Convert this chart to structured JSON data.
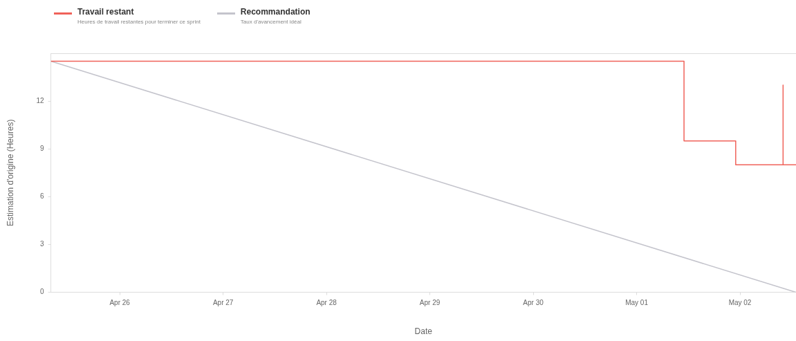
{
  "chart_data": {
    "type": "line",
    "xlabel": "Date",
    "ylabel": "Estimation d'origine (Heures)",
    "xlim": [
      "--04-25T08:00",
      "--05-02T13:00"
    ],
    "xticks": [
      {
        "value": "--04-26",
        "label": "Apr 26"
      },
      {
        "value": "--04-27",
        "label": "Apr 27"
      },
      {
        "value": "--04-28",
        "label": "Apr 28"
      },
      {
        "value": "--04-29",
        "label": "Apr 29"
      },
      {
        "value": "--04-30",
        "label": "Apr 30"
      },
      {
        "value": "--05-01",
        "label": "May 01"
      },
      {
        "value": "--05-02",
        "label": "May 02"
      }
    ],
    "ylim": [
      0,
      15
    ],
    "yticks": [
      0,
      3,
      6,
      9,
      12
    ],
    "legend": "top left",
    "annotations": [
      "Heures de travail restantes pour terminer ce sprint",
      "Taux d'avancement idéal"
    ],
    "series": [
      {
        "name": "Travail restant",
        "type": "step",
        "color": "#f0625a",
        "x": [
          "--04-25T08:00",
          "--05-01T11:00",
          "--05-01T23:00",
          "--05-02T10:00",
          "--05-02T10:00",
          "--05-02T13:00"
        ],
        "values": [
          14.5,
          9.5,
          8,
          13,
          8,
          8
        ]
      },
      {
        "name": "Recommandation",
        "color": "#c4c4cc",
        "x": [
          "--04-25T08:00",
          "--05-02T13:00"
        ],
        "values": [
          14.5,
          0
        ]
      }
    ]
  }
}
